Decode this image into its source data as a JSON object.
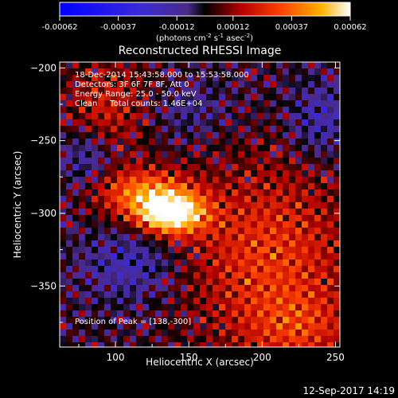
{
  "chart_data": {
    "type": "heatmap",
    "title": "Reconstructed RHESSI Image",
    "xlabel": "Heliocentric X (arcsec)",
    "ylabel": "Heliocentric Y (arcsec)",
    "xlim": [
      62,
      253
    ],
    "ylim": [
      -392,
      -196
    ],
    "x_ticks": [
      100,
      150,
      200,
      250
    ],
    "y_ticks": [
      -200,
      -250,
      -300,
      -350
    ],
    "grid": false,
    "annotations": {
      "time_range": "18-Dec-2014 15:43:58.000 to 15:53:58.000",
      "detectors": "Detectors: 3F 6F 7F 8F, Att 0",
      "energy_range": "Energy Range: 25.0 - 50.0 keV",
      "method_counts": "Clean     Total counts: 1.46E+04",
      "peak_position": "Position of Peak = [138,-300]"
    },
    "peak": {
      "x": 138,
      "y": -300
    },
    "colorbar": {
      "min": -0.00062,
      "max": 0.00062,
      "tick_values": [
        -0.00062,
        -0.00037,
        -0.00012,
        0.00012,
        0.00037,
        0.00062
      ],
      "tick_labels": [
        "-0.00062",
        "-0.00037",
        "-0.00012",
        "0.00012",
        "0.00037",
        "0.00062"
      ],
      "unit_label": "(photons cm",
      "unit_exp1": "-2",
      "unit_mid": " s",
      "unit_exp2": "-1",
      "unit_mid2": " asec",
      "unit_exp3": "-2",
      "unit_end": ")"
    },
    "colors": {
      "negative_end": "#0000ff",
      "neutral": "#000000",
      "mid": "#ff0000",
      "positive_end": "#ffffff"
    }
  },
  "footer": {
    "timestamp": "12-Sep-2017 14:19"
  }
}
